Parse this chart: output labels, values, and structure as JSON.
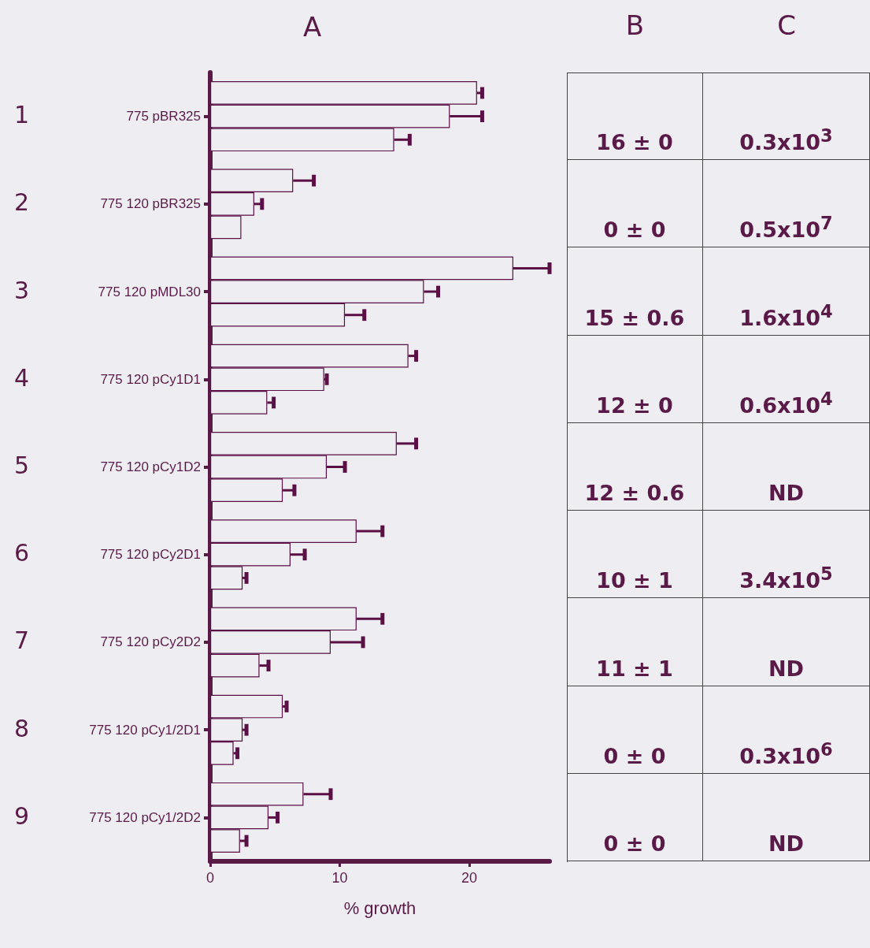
{
  "chart_data": [
    {
      "type": "bar",
      "orientation": "horizontal",
      "title": "A",
      "xlabel": "% growth",
      "categories": [
        "775 pBR325",
        "775 120 pBR325",
        "775 120 pMDL30",
        "775 120 pCy1D1",
        "775 120 pCy1D2",
        "775 120 pCy2D1",
        "775 120 pCy2D2",
        "775 120 pCy1/2D1",
        "775 120 pCy1/2D2"
      ],
      "annotations": [
        "1",
        "2",
        "3",
        "4",
        "5",
        "6",
        "7",
        "8",
        "9",
        "B",
        "C",
        "16 ± 0",
        "0.3x10$^{3}$",
        "0 ± 0",
        "0.5x10$^{7}$",
        "15 ± 0.6",
        "1.6x10$^{4}$",
        "12 ± 0",
        "0.6x10$^{4}$",
        "12 ± 0.6",
        "ND",
        "10 ± 1",
        "3.4x10$^{5}$",
        "11 ± 1",
        "ND",
        "0 ± 0",
        "0.3x10$^{6}$",
        "0 ± 0",
        "ND"
      ],
      "xlim": [
        0,
        26.2
      ],
      "xticks": [
        0,
        10,
        20
      ],
      "series": [
        {
          "color": "#5a0f45",
          "values": [
            20.6,
            6.4,
            23.4,
            15.3,
            14.4,
            11.3,
            11.3,
            5.6,
            7.2
          ],
          "errors": [
            0.4,
            1.6,
            2.8,
            0.6,
            1.5,
            2.0,
            2.0,
            0.3,
            2.1
          ]
        },
        {
          "color": "#5a0f45",
          "values": [
            18.5,
            3.4,
            16.5,
            8.8,
            9.0,
            6.2,
            9.3,
            2.5,
            4.5
          ],
          "errors": [
            2.5,
            0.6,
            1.1,
            0.2,
            1.4,
            1.1,
            2.5,
            0.3,
            0.7
          ]
        },
        {
          "color": "#5a0f45",
          "values": [
            14.2,
            2.4,
            10.4,
            4.4,
            5.6,
            2.5,
            3.8,
            1.8,
            2.3
          ],
          "errors": [
            1.2,
            null,
            1.5,
            0.5,
            0.9,
            0.3,
            0.7,
            0.3,
            0.5
          ]
        }
      ]
    }
  ]
}
